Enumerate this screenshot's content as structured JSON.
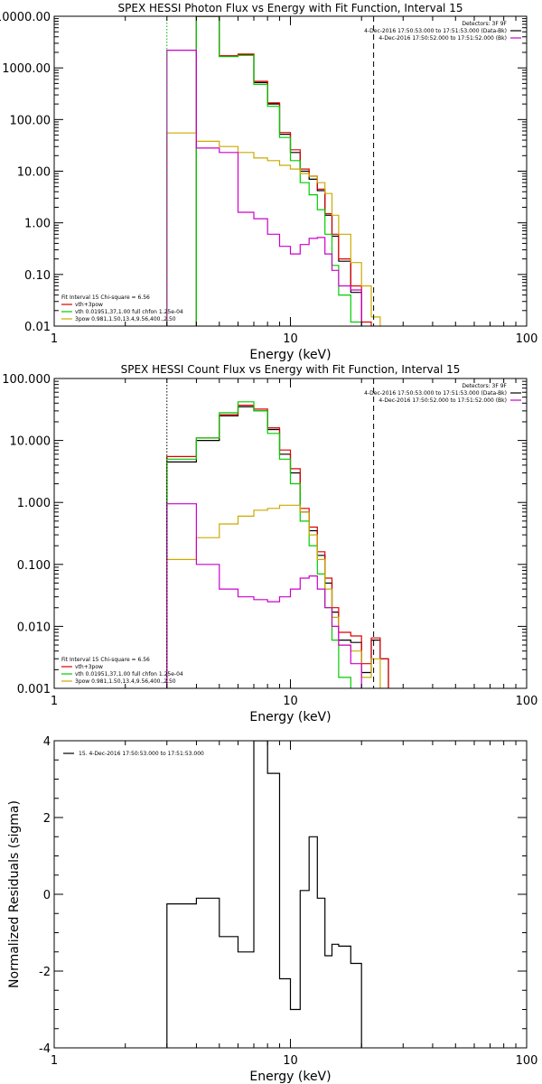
{
  "chart_data": [
    {
      "type": "line",
      "style": "step",
      "title": "SPEX HESSI Photon Flux vs Energy with Fit Function, Interval 15",
      "xlabel": "Energy (keV)",
      "ylabel": "",
      "x_scale": "log",
      "y_scale": "log",
      "xlim": [
        1,
        100
      ],
      "ylim": [
        0.01,
        10000
      ],
      "x_ticks": [
        1,
        10,
        100
      ],
      "x_tick_labels": [
        "1",
        "10",
        "100"
      ],
      "y_ticks": [
        0.01,
        0.1,
        1,
        10,
        100,
        1000,
        10000
      ],
      "y_tick_labels": [
        "0.01",
        "0.10",
        "1.00",
        "10.00",
        "100.00",
        "1000.00",
        "10000.00"
      ],
      "bin_edges": [
        3,
        4,
        5,
        6,
        7,
        8,
        9,
        10,
        11,
        12,
        13,
        14,
        15,
        16,
        18,
        20,
        22,
        24,
        26
      ],
      "series": [
        {
          "color": "#000000",
          "values": [
            null,
            12000,
            1700,
            1800,
            520,
            200,
            52,
            23,
            10,
            7,
            4.2,
            1.4,
            0.55,
            0.18,
            0.045,
            null,
            null,
            null
          ]
        },
        {
          "color": "#dd0000",
          "values": [
            null,
            12000,
            1720,
            1850,
            550,
            210,
            56,
            26,
            11,
            8,
            4.5,
            1.5,
            0.6,
            0.2,
            0.06,
            0.012,
            null,
            null
          ]
        },
        {
          "color": "#00cc00",
          "values": [
            null,
            12000,
            1650,
            1750,
            480,
            180,
            45,
            16,
            6,
            3.5,
            1.8,
            0.6,
            0.15,
            0.04,
            0.012,
            null,
            null,
            null
          ]
        },
        {
          "color": "#ccaa00",
          "values": [
            55,
            38,
            30,
            23,
            18,
            16,
            13,
            11,
            9,
            8,
            6,
            3.7,
            1.4,
            0.6,
            0.17,
            0.06,
            0.015,
            null
          ]
        },
        {
          "color": "#cc00cc",
          "values": [
            2200,
            28,
            23,
            1.6,
            1.2,
            0.6,
            0.35,
            0.25,
            0.38,
            0.5,
            0.52,
            0.25,
            0.12,
            0.06,
            0.05,
            null,
            null,
            null
          ]
        }
      ],
      "vlines": [
        {
          "x": 3,
          "color": "#00aa00",
          "style": "dotted"
        },
        {
          "x": 22.5,
          "color": "#000000",
          "style": "dashed"
        }
      ],
      "legend_top_right": {
        "heading": "Detectors: 3F 9F",
        "entries": [
          {
            "text": "4-Dec-2016 17:50:53.000 to 17:51:53.000 (Data-Bk)",
            "color": "#000000"
          },
          {
            "text": "4-Dec-2016 17:50:52.000 to 17:51:52.000 (Bk)",
            "color": "#cc00cc"
          }
        ]
      },
      "legend_bottom_left": {
        "heading": "Fit Interval 15    Chi-square = 6.56",
        "entries": [
          {
            "text": "vth+3pow",
            "color": "#dd0000"
          },
          {
            "text": "vth 0.01951,37,1.00  full chfon 1.25e-04",
            "color": "#00cc00"
          },
          {
            "text": "3pow 0.981,1.50,13.4,9.56,400.,2.50",
            "color": "#ccaa00"
          }
        ]
      }
    },
    {
      "type": "line",
      "style": "step",
      "title": "SPEX HESSI Count Flux vs Energy with Fit Function, Interval 15",
      "xlabel": "Energy (keV)",
      "ylabel": "",
      "x_scale": "log",
      "y_scale": "log",
      "xlim": [
        1,
        100
      ],
      "ylim": [
        0.001,
        100
      ],
      "x_ticks": [
        1,
        10,
        100
      ],
      "x_tick_labels": [
        "1",
        "10",
        "100"
      ],
      "y_ticks": [
        0.001,
        0.01,
        0.1,
        1,
        10,
        100
      ],
      "y_tick_labels": [
        "0.001",
        "0.010",
        "0.100",
        "1.000",
        "10.000",
        "100.000"
      ],
      "bin_edges": [
        3,
        4,
        5,
        6,
        7,
        8,
        9,
        10,
        11,
        12,
        13,
        14,
        15,
        16,
        18,
        20,
        22,
        24,
        26
      ],
      "series": [
        {
          "color": "#000000",
          "values": [
            4.5,
            10,
            25,
            35,
            30,
            15,
            6,
            3,
            0.7,
            0.35,
            0.14,
            0.05,
            0.017,
            0.006,
            0.0055,
            0.0018,
            0.006,
            0.003
          ]
        },
        {
          "color": "#dd0000",
          "values": [
            5.5,
            11,
            26,
            37,
            32,
            16,
            7,
            3.5,
            0.8,
            0.4,
            0.16,
            0.06,
            0.02,
            0.008,
            0.007,
            0.0025,
            0.0065,
            0.003
          ]
        },
        {
          "color": "#00cc00",
          "values": [
            5,
            11,
            28,
            42,
            30,
            13,
            5,
            2,
            0.5,
            0.2,
            0.07,
            0.02,
            0.006,
            0.0015,
            null,
            null,
            null,
            null
          ]
        },
        {
          "color": "#ccaa00",
          "values": [
            0.12,
            0.27,
            0.45,
            0.6,
            0.75,
            0.8,
            0.9,
            0.9,
            0.7,
            0.3,
            0.12,
            0.04,
            0.014,
            0.005,
            0.004,
            0.0015,
            0.003,
            0.001
          ]
        },
        {
          "color": "#cc00cc",
          "values": [
            0.95,
            0.1,
            0.04,
            0.03,
            0.027,
            0.025,
            0.03,
            0.04,
            0.06,
            0.065,
            0.04,
            0.02,
            0.01,
            0.005,
            0.0025,
            null,
            null,
            null
          ]
        }
      ],
      "vlines": [
        {
          "x": 3,
          "color": "#000000",
          "style": "dotted"
        },
        {
          "x": 22.5,
          "color": "#000000",
          "style": "dashed"
        }
      ],
      "legend_top_right": {
        "heading": "Detectors: 3F 9F",
        "entries": [
          {
            "text": "4-Dec-2016 17:50:53.000 to 17:51:53.000 (Data-Bk)",
            "color": "#000000"
          },
          {
            "text": "4-Dec-2016 17:50:52.000 to 17:51:52.000 (Bk)",
            "color": "#cc00cc"
          }
        ]
      },
      "legend_bottom_left": {
        "heading": "Fit Interval 15    Chi-square = 6.56",
        "entries": [
          {
            "text": "vth+3pow",
            "color": "#dd0000"
          },
          {
            "text": "vth 0.01951,37,1.00  full chfon 1.25e-04",
            "color": "#00cc00"
          },
          {
            "text": "3pow 0.981,1.50,13.4,9.56,400.,2.50",
            "color": "#ccaa00"
          }
        ]
      }
    },
    {
      "type": "line",
      "style": "step",
      "title": "",
      "xlabel": "Energy (keV)",
      "ylabel": "Normalized Residuals (sigma)",
      "x_scale": "log",
      "y_scale": "linear",
      "xlim": [
        1,
        100
      ],
      "ylim": [
        -4,
        4
      ],
      "x_ticks": [
        1,
        10,
        100
      ],
      "x_tick_labels": [
        "1",
        "10",
        "100"
      ],
      "y_ticks": [
        -4,
        -2,
        0,
        2,
        4
      ],
      "y_tick_labels": [
        "-4",
        "-2",
        "0",
        "2",
        "4"
      ],
      "bin_edges": [
        3,
        4,
        5,
        6,
        7,
        8,
        9,
        10,
        11,
        12,
        13,
        14,
        15,
        16,
        18,
        20,
        22
      ],
      "series": [
        {
          "color": "#000000",
          "values": [
            -0.25,
            -0.1,
            -1.1,
            -1.5,
            4.0,
            3.15,
            -2.2,
            -3.0,
            0.1,
            1.5,
            -0.1,
            -1.6,
            -1.3,
            -1.35,
            -1.8,
            null
          ]
        }
      ],
      "drop_to_min_at_ends": true,
      "legend_top_left": {
        "entries": [
          {
            "text": "15.  4-Dec-2016 17:50:53.000 to 17:51:53.000",
            "color": "#000000"
          }
        ]
      }
    }
  ]
}
